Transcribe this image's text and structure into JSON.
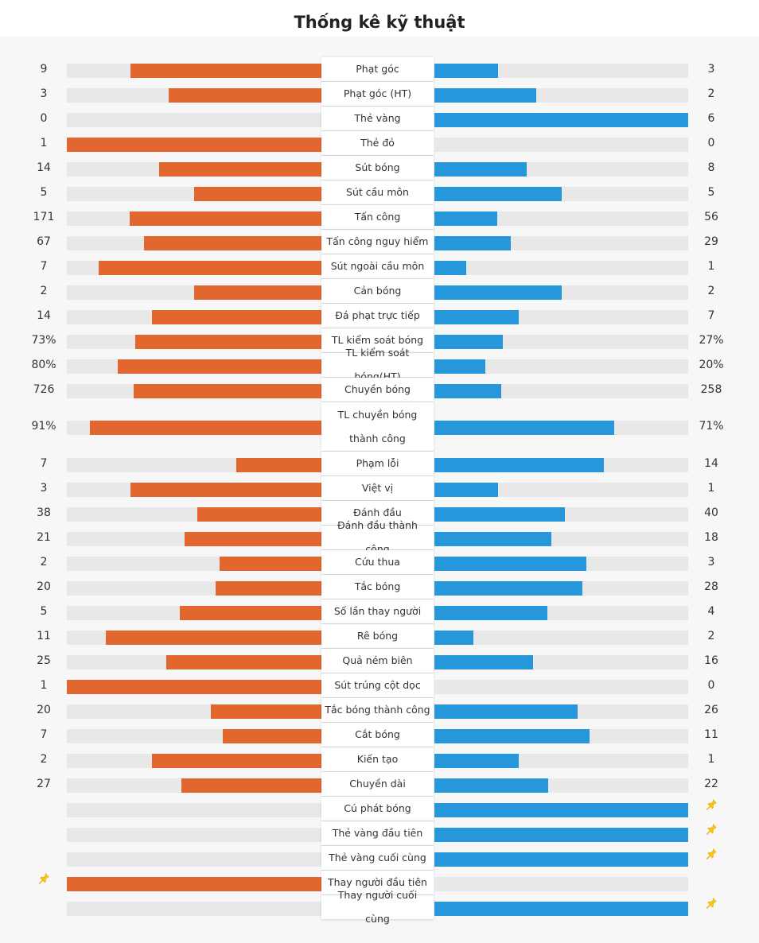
{
  "title": "Thống kê kỹ thuật",
  "colors": {
    "home": "#e2672f",
    "away": "#2797dc",
    "track": "#e8e8e8",
    "pin": "#f5c518"
  },
  "stats": [
    {
      "label": "Phạt góc",
      "home": "9",
      "away": "3",
      "home_ratio": 0.75,
      "away_ratio": 0.25
    },
    {
      "label": "Phạt góc (HT)",
      "home": "3",
      "away": "2",
      "home_ratio": 0.6,
      "away_ratio": 0.4
    },
    {
      "label": "Thẻ vàng",
      "home": "0",
      "away": "6",
      "home_ratio": 0,
      "away_ratio": 1
    },
    {
      "label": "Thẻ đỏ",
      "home": "1",
      "away": "0",
      "home_ratio": 1,
      "away_ratio": 0
    },
    {
      "label": "Sút bóng",
      "home": "14",
      "away": "8",
      "home_ratio": 0.636,
      "away_ratio": 0.364
    },
    {
      "label": "Sút cầu môn",
      "home": "5",
      "away": "5",
      "home_ratio": 0.5,
      "away_ratio": 0.5
    },
    {
      "label": "Tấn công",
      "home": "171",
      "away": "56",
      "home_ratio": 0.753,
      "away_ratio": 0.247
    },
    {
      "label": "Tấn công nguy hiểm",
      "home": "67",
      "away": "29",
      "home_ratio": 0.698,
      "away_ratio": 0.302
    },
    {
      "label": "Sút ngoài cầu môn",
      "home": "7",
      "away": "1",
      "home_ratio": 0.875,
      "away_ratio": 0.125
    },
    {
      "label": "Cản bóng",
      "home": "2",
      "away": "2",
      "home_ratio": 0.5,
      "away_ratio": 0.5
    },
    {
      "label": "Đá phạt trực tiếp",
      "home": "14",
      "away": "7",
      "home_ratio": 0.667,
      "away_ratio": 0.333
    },
    {
      "label": "TL kiểm soát bóng",
      "home": "73%",
      "away": "27%",
      "home_ratio": 0.73,
      "away_ratio": 0.27
    },
    {
      "label": "TL kiểm soát bóng(HT)",
      "home": "80%",
      "away": "20%",
      "home_ratio": 0.8,
      "away_ratio": 0.2
    },
    {
      "label": "Chuyền bóng",
      "home": "726",
      "away": "258",
      "home_ratio": 0.738,
      "away_ratio": 0.262
    },
    {
      "label": "TL chuyền bóng thành công",
      "home": "91%",
      "away": "71%",
      "home_ratio": 0.91,
      "away_ratio": 0.71,
      "tall": true
    },
    {
      "label": "Phạm lỗi",
      "home": "7",
      "away": "14",
      "home_ratio": 0.333,
      "away_ratio": 0.667
    },
    {
      "label": "Việt vị",
      "home": "3",
      "away": "1",
      "home_ratio": 0.75,
      "away_ratio": 0.25
    },
    {
      "label": "Đánh đầu",
      "home": "38",
      "away": "40",
      "home_ratio": 0.487,
      "away_ratio": 0.513
    },
    {
      "label": "Đánh đầu thành công",
      "home": "21",
      "away": "18",
      "home_ratio": 0.538,
      "away_ratio": 0.462
    },
    {
      "label": "Cứu thua",
      "home": "2",
      "away": "3",
      "home_ratio": 0.4,
      "away_ratio": 0.6
    },
    {
      "label": "Tắc bóng",
      "home": "20",
      "away": "28",
      "home_ratio": 0.417,
      "away_ratio": 0.583
    },
    {
      "label": "Số lần thay người",
      "home": "5",
      "away": "4",
      "home_ratio": 0.556,
      "away_ratio": 0.444
    },
    {
      "label": "Rê bóng",
      "home": "11",
      "away": "2",
      "home_ratio": 0.846,
      "away_ratio": 0.154
    },
    {
      "label": "Quả ném biên",
      "home": "25",
      "away": "16",
      "home_ratio": 0.61,
      "away_ratio": 0.39
    },
    {
      "label": "Sút trúng cột dọc",
      "home": "1",
      "away": "0",
      "home_ratio": 1,
      "away_ratio": 0
    },
    {
      "label": "Tắc bóng thành công",
      "home": "20",
      "away": "26",
      "home_ratio": 0.435,
      "away_ratio": 0.565
    },
    {
      "label": "Cắt bóng",
      "home": "7",
      "away": "11",
      "home_ratio": 0.389,
      "away_ratio": 0.611
    },
    {
      "label": "Kiến tạo",
      "home": "2",
      "away": "1",
      "home_ratio": 0.667,
      "away_ratio": 0.333
    },
    {
      "label": "Chuyền dài",
      "home": "27",
      "away": "22",
      "home_ratio": 0.551,
      "away_ratio": 0.449
    },
    {
      "label": "Cú phát bóng",
      "home": "",
      "away": "",
      "home_ratio": 0,
      "away_ratio": 1,
      "pin": "away"
    },
    {
      "label": "Thẻ vàng đầu tiên",
      "home": "",
      "away": "",
      "home_ratio": 0,
      "away_ratio": 1,
      "pin": "away"
    },
    {
      "label": "Thẻ vàng cuối cùng",
      "home": "",
      "away": "",
      "home_ratio": 0,
      "away_ratio": 1,
      "pin": "away"
    },
    {
      "label": "Thay người đầu tiên",
      "home": "",
      "away": "",
      "home_ratio": 1,
      "away_ratio": 0,
      "pin": "home"
    },
    {
      "label": "Thay người cuối cùng",
      "home": "",
      "away": "",
      "home_ratio": 0,
      "away_ratio": 1,
      "pin": "away"
    }
  ]
}
